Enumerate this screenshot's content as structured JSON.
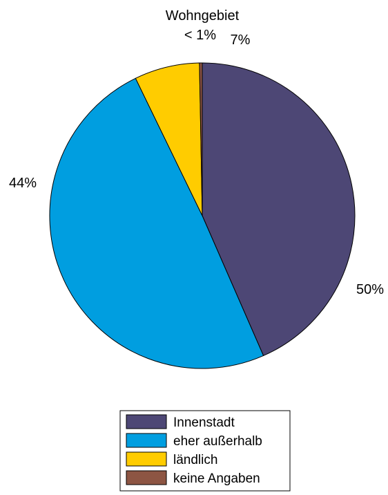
{
  "chart_data": {
    "type": "pie",
    "title": "Wohngebiet",
    "categories": [
      "Innenstadt",
      "eher außerhalb",
      "ländlich",
      "keine Angaben"
    ],
    "values": [
      44,
      50,
      7,
      0.3
    ],
    "labels": [
      "44%",
      "50%",
      "7%",
      "< 1%"
    ],
    "colors": [
      "#4d4775",
      "#009ee0",
      "#ffcc00",
      "#8d5543"
    ],
    "start_angle_deg": 0,
    "direction": "clockwise",
    "legend": "bottom-center"
  }
}
